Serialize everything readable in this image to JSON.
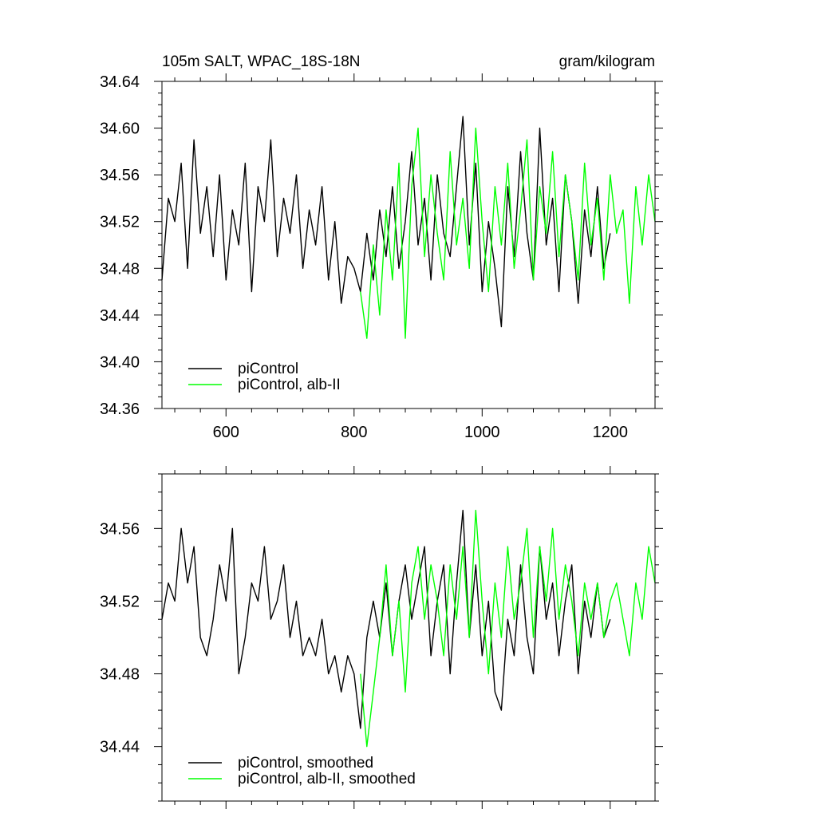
{
  "chart_data": [
    {
      "type": "line",
      "title": "105m SALT, WPAC_18S-18N",
      "units": "gram/kilogram",
      "xlim": [
        500,
        1270
      ],
      "ylim": [
        34.36,
        34.64
      ],
      "x_ticks": [
        600,
        800,
        1000,
        1200
      ],
      "x_tick_labels": [
        "600",
        "800",
        "1000",
        "1200"
      ],
      "y_ticks": [
        34.36,
        34.4,
        34.44,
        34.48,
        34.52,
        34.56,
        34.6,
        34.64
      ],
      "y_tick_labels": [
        "34.36",
        "34.40",
        "34.44",
        "34.48",
        "34.52",
        "34.56",
        "34.60",
        "34.64"
      ],
      "grid": false,
      "legend_position": "bottom-left",
      "series": [
        {
          "name": "piControl",
          "color": "#000000",
          "x": [
            500,
            510,
            520,
            530,
            540,
            550,
            560,
            570,
            580,
            590,
            600,
            610,
            620,
            630,
            640,
            650,
            660,
            670,
            680,
            690,
            700,
            710,
            720,
            730,
            740,
            750,
            760,
            770,
            780,
            790,
            800,
            810,
            820,
            830,
            840,
            850,
            860,
            870,
            880,
            890,
            900,
            910,
            920,
            930,
            940,
            950,
            960,
            970,
            980,
            990,
            1000,
            1010,
            1020,
            1030,
            1040,
            1050,
            1060,
            1070,
            1080,
            1090,
            1100,
            1110,
            1120,
            1130,
            1140,
            1150,
            1160,
            1170,
            1180,
            1190,
            1200
          ],
          "values": [
            34.47,
            34.54,
            34.52,
            34.57,
            34.48,
            34.59,
            34.51,
            34.55,
            34.49,
            34.56,
            34.47,
            34.53,
            34.5,
            34.57,
            34.46,
            34.55,
            34.52,
            34.59,
            34.49,
            34.54,
            34.51,
            34.56,
            34.48,
            34.53,
            34.5,
            34.55,
            34.47,
            34.52,
            34.45,
            34.49,
            34.48,
            34.46,
            34.51,
            34.47,
            34.53,
            34.49,
            34.55,
            34.48,
            34.52,
            34.58,
            34.5,
            34.54,
            34.47,
            34.56,
            34.51,
            34.49,
            34.55,
            34.61,
            34.5,
            34.57,
            34.46,
            34.52,
            34.48,
            34.43,
            34.55,
            34.49,
            34.58,
            34.51,
            34.47,
            34.6,
            34.5,
            34.54,
            34.46,
            34.56,
            34.52,
            34.45,
            34.53,
            34.49,
            34.55,
            34.48,
            34.51
          ]
        },
        {
          "name": "piControl, alb-II",
          "color": "#00ff00",
          "x": [
            810,
            820,
            830,
            840,
            850,
            860,
            870,
            880,
            890,
            900,
            910,
            920,
            930,
            940,
            950,
            960,
            970,
            980,
            990,
            1000,
            1010,
            1020,
            1030,
            1040,
            1050,
            1060,
            1070,
            1080,
            1090,
            1100,
            1110,
            1120,
            1130,
            1140,
            1150,
            1160,
            1170,
            1180,
            1190,
            1200,
            1210,
            1220,
            1230,
            1240,
            1250,
            1260,
            1270
          ],
          "values": [
            34.46,
            34.42,
            34.5,
            34.44,
            34.53,
            34.47,
            34.57,
            34.42,
            34.55,
            34.6,
            34.49,
            34.56,
            34.51,
            34.47,
            34.58,
            34.5,
            34.54,
            34.48,
            34.6,
            34.52,
            34.46,
            34.55,
            34.5,
            34.57,
            34.48,
            34.53,
            34.59,
            34.47,
            34.55,
            34.51,
            34.58,
            34.49,
            34.56,
            34.52,
            34.47,
            34.57,
            34.5,
            34.54,
            34.47,
            34.56,
            34.51,
            34.53,
            34.45,
            34.55,
            34.5,
            34.56,
            34.52
          ]
        }
      ]
    },
    {
      "type": "line",
      "xlim": [
        500,
        1270
      ],
      "ylim": [
        34.41,
        34.59
      ],
      "x_ticks": [
        600,
        800,
        1000,
        1200
      ],
      "y_ticks": [
        34.44,
        34.48,
        34.52,
        34.56
      ],
      "y_tick_labels": [
        "34.44",
        "34.48",
        "34.52",
        "34.56"
      ],
      "grid": false,
      "legend_position": "bottom-left",
      "series": [
        {
          "name": "piControl, smoothed",
          "color": "#000000",
          "x": [
            500,
            510,
            520,
            530,
            540,
            550,
            560,
            570,
            580,
            590,
            600,
            610,
            620,
            630,
            640,
            650,
            660,
            670,
            680,
            690,
            700,
            710,
            720,
            730,
            740,
            750,
            760,
            770,
            780,
            790,
            800,
            810,
            820,
            830,
            840,
            850,
            860,
            870,
            880,
            890,
            900,
            910,
            920,
            930,
            940,
            950,
            960,
            970,
            980,
            990,
            1000,
            1010,
            1020,
            1030,
            1040,
            1050,
            1060,
            1070,
            1080,
            1090,
            1100,
            1110,
            1120,
            1130,
            1140,
            1150,
            1160,
            1170,
            1180,
            1190,
            1200
          ],
          "values": [
            34.51,
            34.53,
            34.52,
            34.56,
            34.53,
            34.55,
            34.5,
            34.49,
            34.51,
            34.54,
            34.52,
            34.56,
            34.48,
            34.5,
            34.53,
            34.52,
            34.55,
            34.51,
            34.52,
            34.54,
            34.5,
            34.52,
            34.49,
            34.5,
            34.49,
            34.51,
            34.48,
            34.49,
            34.47,
            34.49,
            34.48,
            34.45,
            34.5,
            34.52,
            34.5,
            34.53,
            34.49,
            34.52,
            34.54,
            34.51,
            34.53,
            34.55,
            34.49,
            34.52,
            34.54,
            34.48,
            34.53,
            34.57,
            34.5,
            34.54,
            34.49,
            34.52,
            34.47,
            34.46,
            34.51,
            34.49,
            34.54,
            34.5,
            34.48,
            34.55,
            34.51,
            34.53,
            34.49,
            34.52,
            34.54,
            34.48,
            34.52,
            34.5,
            34.53,
            34.5,
            34.51
          ]
        },
        {
          "name": "piControl, alb-II, smoothed",
          "color": "#00ff00",
          "x": [
            810,
            820,
            830,
            840,
            850,
            860,
            870,
            880,
            890,
            900,
            910,
            920,
            930,
            940,
            950,
            960,
            970,
            980,
            990,
            1000,
            1010,
            1020,
            1030,
            1040,
            1050,
            1060,
            1070,
            1080,
            1090,
            1100,
            1110,
            1120,
            1130,
            1140,
            1150,
            1160,
            1170,
            1180,
            1190,
            1200,
            1210,
            1220,
            1230,
            1240,
            1250,
            1260,
            1270
          ],
          "values": [
            34.48,
            34.44,
            34.47,
            34.5,
            34.54,
            34.49,
            34.52,
            34.47,
            34.53,
            34.55,
            34.51,
            34.54,
            34.52,
            34.49,
            34.54,
            34.51,
            34.55,
            34.5,
            34.57,
            34.52,
            34.48,
            34.53,
            34.5,
            34.55,
            34.51,
            34.53,
            34.56,
            34.5,
            34.55,
            34.52,
            34.56,
            34.51,
            34.54,
            34.52,
            34.49,
            34.53,
            34.51,
            34.53,
            34.5,
            34.52,
            34.53,
            34.51,
            34.49,
            34.53,
            34.51,
            34.55,
            34.53
          ]
        }
      ]
    }
  ]
}
